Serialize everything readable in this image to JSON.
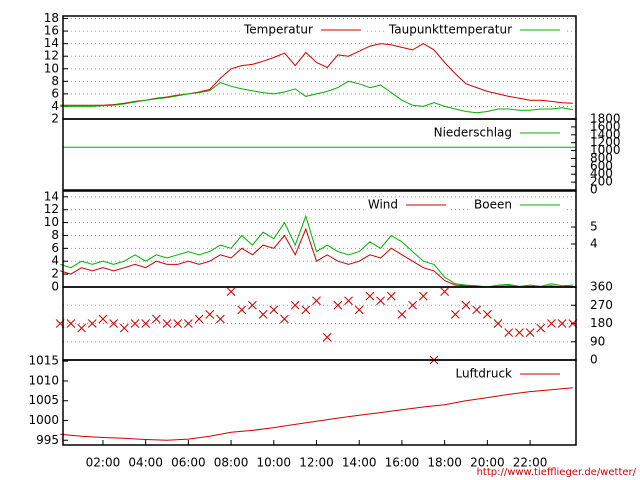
{
  "charts": [
    {
      "type": "line",
      "xlim": [
        0.13,
        24.15
      ],
      "ylim": [
        2,
        18.4
      ],
      "yticks": [
        2,
        4,
        6,
        8,
        10,
        12,
        14,
        16,
        18
      ],
      "grid": true,
      "x": [
        0,
        0.5,
        1,
        1.5,
        2,
        2.5,
        3,
        3.5,
        4,
        4.5,
        5,
        5.5,
        6,
        6.5,
        7,
        7.5,
        8,
        8.5,
        9,
        9.5,
        10,
        10.5,
        11,
        11.5,
        12,
        12.5,
        13,
        13.5,
        14,
        14.5,
        15,
        15.5,
        16,
        16.5,
        17,
        17.5,
        18,
        18.5,
        19,
        19.5,
        20,
        20.5,
        21,
        21.5,
        22,
        22.5,
        23,
        23.5,
        24
      ],
      "series": [
        {
          "name": "Temperatur",
          "color": "#d00000",
          "values": [
            4.2,
            4.2,
            4.2,
            4.2,
            4.2,
            4.3,
            4.5,
            4.8,
            5,
            5.3,
            5.5,
            5.8,
            6,
            6.3,
            6.7,
            8.5,
            10,
            10.5,
            10.7,
            11.2,
            11.8,
            12.5,
            10.5,
            12.6,
            11,
            10.2,
            12.2,
            12,
            12.8,
            13.6,
            14,
            13.8,
            13.4,
            13,
            14,
            13,
            11,
            9.2,
            7.6,
            7,
            6.4,
            6,
            5.6,
            5.3,
            5,
            5,
            4.8,
            4.6,
            4.5
          ]
        },
        {
          "name": "Taupunkttemperatur",
          "color": "#00b000",
          "values": [
            4,
            4,
            4,
            4,
            4.1,
            4.2,
            4.4,
            4.7,
            5,
            5.2,
            5.4,
            5.7,
            6,
            6.2,
            6.5,
            7.8,
            7.2,
            6.8,
            6.5,
            6.2,
            6,
            6.3,
            6.8,
            5.6,
            6,
            6.4,
            7,
            8,
            7.6,
            7,
            7.4,
            6.2,
            5,
            4.2,
            4,
            4.6,
            4,
            3.6,
            3.2,
            3,
            3.2,
            3.6,
            3.6,
            3.4,
            3.4,
            3.6,
            3.6,
            3.8,
            3.5
          ]
        }
      ]
    },
    {
      "type": "line",
      "xlim": [
        0.13,
        24.15
      ],
      "ylim": [
        0,
        1800
      ],
      "yticks": [
        0,
        200,
        400,
        600,
        800,
        1000,
        1200,
        1400,
        1600,
        1800
      ],
      "grid": false,
      "x": [
        0.13,
        24.15
      ],
      "series": [
        {
          "name": "Niederschlag",
          "color": "#00b000",
          "values": [
            1085,
            1085
          ]
        }
      ]
    },
    {
      "type": "line",
      "xlim": [
        0.13,
        24.15
      ],
      "ylim": [
        0,
        14.9
      ],
      "yticks": [
        0,
        2,
        4,
        6,
        8,
        10,
        12,
        14
      ],
      "y2lim": [
        1.47,
        7.12
      ],
      "y2ticks": [
        4,
        5
      ],
      "grid": true,
      "x": [
        0,
        0.5,
        1,
        1.5,
        2,
        2.5,
        3,
        3.5,
        4,
        4.5,
        5,
        5.5,
        6,
        6.5,
        7,
        7.5,
        8,
        8.5,
        9,
        9.5,
        10,
        10.5,
        11,
        11.5,
        12,
        12.5,
        13,
        13.5,
        14,
        14.5,
        15,
        15.5,
        16,
        16.5,
        17,
        17.5,
        18,
        18.5,
        19,
        19.5,
        20,
        20.5,
        21,
        21.5,
        22,
        22.5,
        23,
        23.5,
        24
      ],
      "series": [
        {
          "name": "Wind",
          "color": "#d00000",
          "values": [
            2.5,
            2,
            3,
            2.5,
            3,
            2.5,
            3,
            3.5,
            3,
            4,
            3.5,
            3.5,
            4,
            3.5,
            4,
            5,
            4.5,
            6,
            5,
            6.5,
            6,
            8,
            5,
            9,
            4,
            5,
            4,
            3.5,
            4,
            5,
            4.5,
            6,
            5,
            4,
            3,
            2.5,
            1,
            0.3,
            0.2,
            0.1,
            0,
            0.1,
            0.2,
            0,
            0.1,
            0,
            0.2,
            0,
            0.1
          ]
        },
        {
          "name": "Boeen",
          "color": "#00b000",
          "values": [
            3.5,
            3,
            4,
            3.5,
            4,
            3.5,
            4,
            5,
            4,
            5,
            4.5,
            5,
            5.5,
            5,
            5.5,
            6.5,
            6,
            8,
            6.5,
            8.5,
            7.5,
            10,
            6.5,
            11,
            5.5,
            6.5,
            5.5,
            5,
            5.5,
            7,
            6,
            8,
            7,
            5.5,
            4,
            3.5,
            1.5,
            0.5,
            0.3,
            0.2,
            0,
            0.3,
            0.4,
            0.1,
            0.3,
            0.1,
            0.5,
            0.2,
            0.3
          ]
        }
      ]
    },
    {
      "type": "scatter",
      "xlim": [
        0.13,
        24.15
      ],
      "ylim": [
        0,
        360
      ],
      "yticks": [
        0,
        90,
        180,
        270,
        360
      ],
      "grid": true,
      "x": [
        0,
        0.5,
        1,
        1.5,
        2,
        2.5,
        3,
        3.5,
        4,
        4.5,
        5,
        5.5,
        6,
        6.5,
        7,
        7.5,
        8,
        8.5,
        9,
        9.5,
        10,
        10.5,
        11,
        11.5,
        12,
        12.5,
        13,
        13.5,
        14,
        14.5,
        15,
        15.5,
        16,
        16.5,
        17,
        17.5,
        18,
        18.5,
        19,
        19.5,
        20,
        20.5,
        21,
        21.5,
        22,
        22.5,
        23,
        23.5,
        24
      ],
      "series": [
        {
          "color": "#d00000",
          "values": [
            180,
            180,
            157,
            180,
            202,
            180,
            157,
            180,
            180,
            202,
            180,
            180,
            180,
            202,
            225,
            202,
            337,
            247,
            270,
            225,
            247,
            202,
            270,
            247,
            292,
            112,
            270,
            292,
            247,
            315,
            292,
            315,
            225,
            270,
            315,
            0,
            337,
            225,
            270,
            247,
            225,
            180,
            135,
            135,
            135,
            157,
            180,
            180,
            180
          ]
        }
      ]
    },
    {
      "type": "line",
      "xlim": [
        0.13,
        24.15
      ],
      "ylim": [
        993.8,
        1015.3
      ],
      "yticks": [
        995,
        1000,
        1005,
        1010,
        1015
      ],
      "grid": false,
      "xticks": [
        {
          "value": 2,
          "label": "02:00"
        },
        {
          "value": 4,
          "label": "04:00"
        },
        {
          "value": 6,
          "label": "06:00"
        },
        {
          "value": 8,
          "label": "08:00"
        },
        {
          "value": 10,
          "label": "10:00"
        },
        {
          "value": 12,
          "label": "12:00"
        },
        {
          "value": 14,
          "label": "14:00"
        },
        {
          "value": 16,
          "label": "16:00"
        },
        {
          "value": 18,
          "label": "18:00"
        },
        {
          "value": 20,
          "label": "20:00"
        },
        {
          "value": 22,
          "label": "22:00"
        }
      ],
      "x": [
        0,
        1,
        2,
        3,
        4,
        5,
        6,
        7,
        8,
        9,
        10,
        11,
        12,
        13,
        14,
        15,
        16,
        17,
        18,
        19,
        20,
        21,
        22,
        23,
        24
      ],
      "series": [
        {
          "name": "Luftdruck",
          "color": "#d00000",
          "values": [
            996.5,
            996,
            995.7,
            995.5,
            995.2,
            995,
            995.3,
            996,
            997,
            997.5,
            998.2,
            999,
            999.8,
            1000.6,
            1001.3,
            1002,
            1002.7,
            1003.4,
            1004,
            1005,
            1005.8,
            1006.6,
            1007.3,
            1007.8,
            1008.3
          ]
        }
      ]
    }
  ],
  "footer": "http://www.tiefflieger.de/wetter/"
}
